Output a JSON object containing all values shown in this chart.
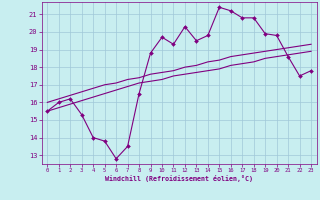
{
  "title": "",
  "xlabel": "Windchill (Refroidissement éolien,°C)",
  "background_color": "#c8eef0",
  "grid_color": "#a0c8d8",
  "line_color": "#800080",
  "x_ticks": [
    0,
    1,
    2,
    3,
    4,
    5,
    6,
    7,
    8,
    9,
    10,
    11,
    12,
    13,
    14,
    15,
    16,
    17,
    18,
    19,
    20,
    21,
    22,
    23
  ],
  "ylim": [
    12.5,
    21.7
  ],
  "xlim": [
    -0.5,
    23.5
  ],
  "y_ticks": [
    13,
    14,
    15,
    16,
    17,
    18,
    19,
    20,
    21
  ],
  "curve1_x": [
    0,
    1,
    2,
    3,
    4,
    5,
    6,
    7,
    8,
    9,
    10,
    11,
    12,
    13,
    14,
    15,
    16,
    17,
    18,
    19,
    20,
    21,
    22,
    23
  ],
  "curve1_y": [
    15.5,
    16.0,
    16.2,
    15.3,
    14.0,
    13.8,
    12.8,
    13.5,
    16.5,
    18.8,
    19.7,
    19.3,
    20.3,
    19.5,
    19.8,
    21.4,
    21.2,
    20.8,
    20.8,
    19.9,
    19.8,
    18.6,
    17.5,
    17.8
  ],
  "curve2_x": [
    0,
    1,
    2,
    3,
    4,
    5,
    6,
    7,
    8,
    9,
    10,
    11,
    12,
    13,
    14,
    15,
    16,
    17,
    18,
    19,
    20,
    21,
    22,
    23
  ],
  "curve2_y": [
    16.0,
    16.2,
    16.4,
    16.6,
    16.8,
    17.0,
    17.1,
    17.3,
    17.4,
    17.6,
    17.7,
    17.8,
    18.0,
    18.1,
    18.3,
    18.4,
    18.6,
    18.7,
    18.8,
    18.9,
    19.0,
    19.1,
    19.2,
    19.3
  ],
  "curve3_x": [
    0,
    1,
    2,
    3,
    4,
    5,
    6,
    7,
    8,
    9,
    10,
    11,
    12,
    13,
    14,
    15,
    16,
    17,
    18,
    19,
    20,
    21,
    22,
    23
  ],
  "curve3_y": [
    15.5,
    15.7,
    15.9,
    16.1,
    16.3,
    16.5,
    16.7,
    16.9,
    17.1,
    17.2,
    17.3,
    17.5,
    17.6,
    17.7,
    17.8,
    17.9,
    18.1,
    18.2,
    18.3,
    18.5,
    18.6,
    18.7,
    18.8,
    18.9
  ]
}
